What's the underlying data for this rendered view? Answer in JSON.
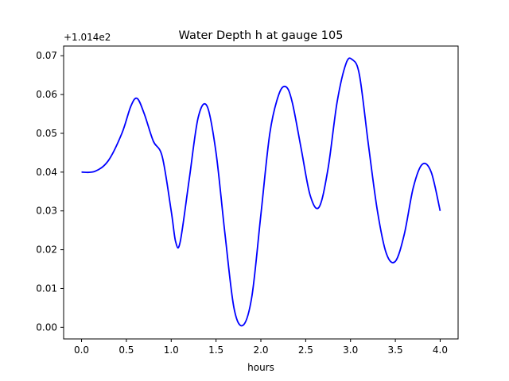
{
  "chart_data": {
    "type": "line",
    "title": "Water Depth h at gauge 105",
    "xlabel": "hours",
    "ylabel": "",
    "y_offset_label": "+1.014e2",
    "xlim": [
      -0.2,
      4.2
    ],
    "ylim": [
      -0.003,
      0.0725
    ],
    "x_ticks": [
      0.0,
      0.5,
      1.0,
      1.5,
      2.0,
      2.5,
      3.0,
      3.5,
      4.0
    ],
    "x_tick_labels": [
      "0.0",
      "0.5",
      "1.0",
      "1.5",
      "2.0",
      "2.5",
      "3.0",
      "3.5",
      "4.0"
    ],
    "y_ticks": [
      0.0,
      0.01,
      0.02,
      0.03,
      0.04,
      0.05,
      0.06,
      0.07
    ],
    "y_tick_labels": [
      "0.00",
      "0.01",
      "0.02",
      "0.03",
      "0.04",
      "0.05",
      "0.06",
      "0.07"
    ],
    "grid": false,
    "series": [
      {
        "color": "#0000ff",
        "x": [
          0.0,
          0.15,
          0.3,
          0.45,
          0.55,
          0.62,
          0.7,
          0.8,
          0.9,
          1.0,
          1.05,
          1.1,
          1.2,
          1.3,
          1.4,
          1.5,
          1.6,
          1.7,
          1.8,
          1.9,
          2.0,
          2.1,
          2.2,
          2.28,
          2.35,
          2.45,
          2.55,
          2.65,
          2.75,
          2.85,
          2.95,
          3.02,
          3.1,
          3.2,
          3.3,
          3.4,
          3.5,
          3.6,
          3.7,
          3.8,
          3.9,
          4.0
        ],
        "y": [
          0.04,
          0.0402,
          0.043,
          0.05,
          0.057,
          0.059,
          0.055,
          0.048,
          0.044,
          0.03,
          0.022,
          0.022,
          0.038,
          0.054,
          0.057,
          0.045,
          0.024,
          0.005,
          0.0005,
          0.008,
          0.029,
          0.05,
          0.06,
          0.062,
          0.058,
          0.046,
          0.034,
          0.031,
          0.041,
          0.058,
          0.068,
          0.069,
          0.065,
          0.047,
          0.03,
          0.019,
          0.017,
          0.024,
          0.036,
          0.042,
          0.04,
          0.03
        ]
      }
    ]
  }
}
